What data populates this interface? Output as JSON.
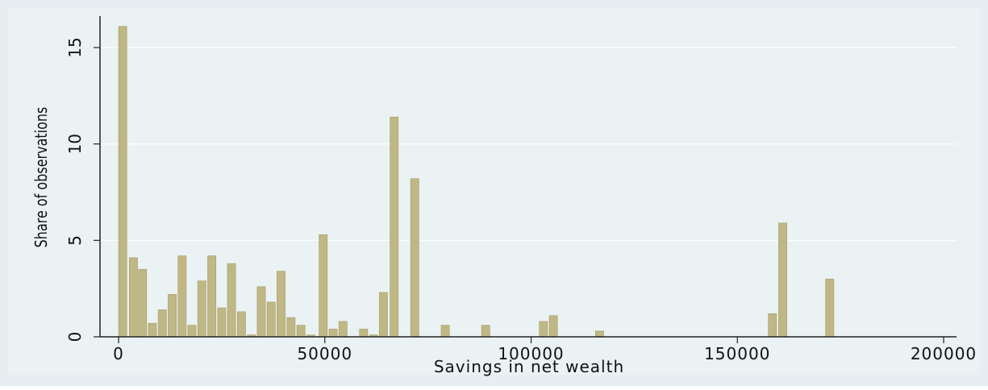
{
  "chart_data": {
    "type": "bar",
    "title": "",
    "xlabel": "Savings in net wealth",
    "ylabel": "Share of observations",
    "xlim": [
      0,
      200000
    ],
    "ylim": [
      0,
      16.5
    ],
    "x_ticks": [
      {
        "value": 0,
        "label": "0"
      },
      {
        "value": 50000,
        "label": "50000"
      },
      {
        "value": 100000,
        "label": "100000"
      },
      {
        "value": 150000,
        "label": "150000"
      },
      {
        "value": 200000,
        "label": "200000"
      }
    ],
    "y_ticks": [
      {
        "value": 0,
        "label": "0"
      },
      {
        "value": 5,
        "label": "5"
      },
      {
        "value": 10,
        "label": "10"
      },
      {
        "value": 15,
        "label": "15"
      }
    ],
    "grid": true,
    "bin_width": 2000,
    "bars": [
      {
        "x": 1000,
        "value": 16.1
      },
      {
        "x": 3600,
        "value": 4.1
      },
      {
        "x": 5800,
        "value": 3.5
      },
      {
        "x": 8200,
        "value": 0.7
      },
      {
        "x": 10600,
        "value": 1.4
      },
      {
        "x": 13000,
        "value": 2.2
      },
      {
        "x": 15400,
        "value": 4.2
      },
      {
        "x": 17800,
        "value": 0.6
      },
      {
        "x": 20200,
        "value": 2.9
      },
      {
        "x": 22600,
        "value": 4.2
      },
      {
        "x": 25000,
        "value": 1.5
      },
      {
        "x": 27400,
        "value": 3.8
      },
      {
        "x": 29800,
        "value": 1.3
      },
      {
        "x": 32200,
        "value": 0.1
      },
      {
        "x": 34600,
        "value": 2.6
      },
      {
        "x": 37000,
        "value": 1.8
      },
      {
        "x": 39400,
        "value": 3.4
      },
      {
        "x": 41800,
        "value": 1.0
      },
      {
        "x": 44200,
        "value": 0.6
      },
      {
        "x": 46600,
        "value": 0.1
      },
      {
        "x": 49600,
        "value": 5.3
      },
      {
        "x": 52000,
        "value": 0.4
      },
      {
        "x": 54400,
        "value": 0.8
      },
      {
        "x": 59400,
        "value": 0.4
      },
      {
        "x": 61800,
        "value": 0.1
      },
      {
        "x": 64200,
        "value": 2.3
      },
      {
        "x": 66800,
        "value": 11.4
      },
      {
        "x": 71800,
        "value": 8.2
      },
      {
        "x": 79200,
        "value": 0.6
      },
      {
        "x": 89000,
        "value": 0.6
      },
      {
        "x": 103000,
        "value": 0.8
      },
      {
        "x": 105400,
        "value": 1.1
      },
      {
        "x": 116600,
        "value": 0.3
      },
      {
        "x": 158500,
        "value": 1.2
      },
      {
        "x": 161000,
        "value": 5.9
      },
      {
        "x": 172400,
        "value": 3.0
      }
    ]
  },
  "colors": {
    "background_outer": "#e6eef1",
    "plot_area": "#eaf2f3",
    "bar_fill": "#bfb786",
    "bar_stroke": "#a69d63",
    "grid": "#ffffff",
    "axis": "#222222",
    "text": "#111111"
  }
}
